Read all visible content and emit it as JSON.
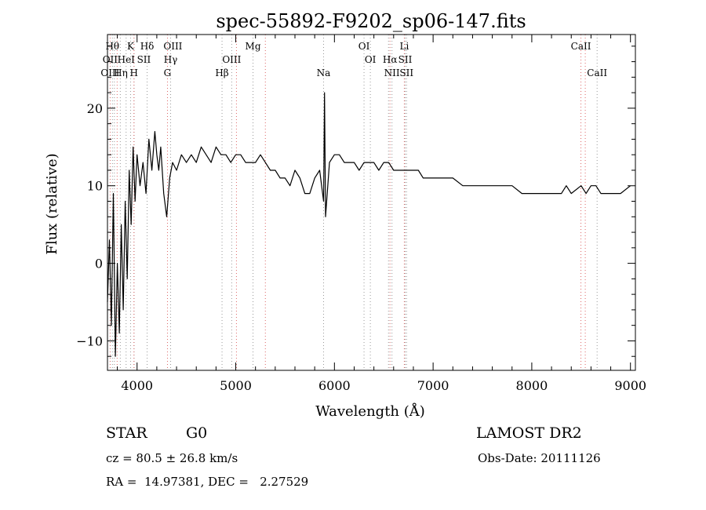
{
  "chart_data": {
    "type": "line",
    "title": "spec-55892-F9202_sp06-147.fits",
    "xlabel": "Wavelength (Å)",
    "ylabel": "Flux (relative)",
    "xlim": [
      3700,
      9050
    ],
    "ylim": [
      -13.8,
      29.5
    ],
    "xticks": [
      4000,
      5000,
      6000,
      7000,
      8000,
      9000
    ],
    "yticks": [
      -10,
      0,
      10,
      20
    ],
    "series": [
      {
        "name": "spectrum",
        "x": [
          3700,
          3720,
          3740,
          3760,
          3780,
          3800,
          3820,
          3840,
          3860,
          3880,
          3900,
          3920,
          3940,
          3960,
          3980,
          4000,
          4030,
          4060,
          4090,
          4120,
          4150,
          4180,
          4200,
          4220,
          4240,
          4270,
          4300,
          4330,
          4360,
          4400,
          4450,
          4500,
          4550,
          4600,
          4650,
          4700,
          4750,
          4800,
          4850,
          4900,
          4950,
          5000,
          5050,
          5100,
          5150,
          5200,
          5250,
          5300,
          5350,
          5400,
          5450,
          5500,
          5550,
          5600,
          5650,
          5700,
          5750,
          5800,
          5850,
          5890,
          5900,
          5910,
          5950,
          6000,
          6050,
          6100,
          6150,
          6200,
          6250,
          6300,
          6350,
          6400,
          6450,
          6500,
          6550,
          6600,
          6650,
          6700,
          6750,
          6800,
          6850,
          6900,
          6950,
          7000,
          7100,
          7200,
          7300,
          7400,
          7500,
          7600,
          7700,
          7800,
          7900,
          8000,
          8100,
          8200,
          8300,
          8350,
          8400,
          8500,
          8550,
          8600,
          8650,
          8700,
          8800,
          8900,
          9000
        ],
        "values": [
          -5,
          3,
          -8,
          9,
          -12,
          0,
          -9,
          5,
          -6,
          8,
          -2,
          12,
          5,
          15,
          8,
          14,
          10,
          13,
          9,
          16,
          12,
          17,
          14,
          12,
          15,
          9,
          6,
          11,
          13,
          12,
          14,
          13,
          14,
          13,
          15,
          14,
          13,
          15,
          14,
          14,
          13,
          14,
          14,
          13,
          13,
          13,
          14,
          13,
          12,
          12,
          11,
          11,
          10,
          12,
          11,
          9,
          9,
          11,
          12,
          8,
          22,
          6,
          13,
          14,
          14,
          13,
          13,
          13,
          12,
          13,
          13,
          13,
          12,
          13,
          13,
          12,
          12,
          12,
          12,
          12,
          12,
          11,
          11,
          11,
          11,
          11,
          10,
          10,
          10,
          10,
          10,
          10,
          9,
          9,
          9,
          9,
          9,
          10,
          9,
          10,
          9,
          10,
          10,
          9,
          9,
          9,
          10
        ]
      }
    ],
    "line_groups": [
      {
        "color": "#999999",
        "x": [
          3750,
          3770,
          3830,
          3889,
          3934,
          3970,
          4102,
          4340,
          4861,
          4959,
          5175,
          5890,
          6300,
          6364,
          6548,
          6583,
          6717,
          6731,
          8662
        ]
      },
      {
        "color": "#dd6666",
        "x": [
          3727,
          3798,
          3968,
          4308,
          5007,
          5300,
          6563,
          6708,
          8498,
          8542
        ]
      }
    ],
    "labels": [
      {
        "text": "Hθ",
        "x": 3750,
        "row": 1
      },
      {
        "text": "K",
        "x": 3934,
        "row": 1
      },
      {
        "text": "Hδ",
        "x": 4102,
        "row": 1
      },
      {
        "text": "OIII",
        "x": 4363,
        "row": 1
      },
      {
        "text": "Mg",
        "x": 5175,
        "row": 1
      },
      {
        "text": "OI",
        "x": 6300,
        "row": 1
      },
      {
        "text": "Li",
        "x": 6708,
        "row": 1
      },
      {
        "text": "CaII",
        "x": 8498,
        "row": 1
      },
      {
        "text": "OII",
        "x": 3727,
        "row": 2
      },
      {
        "text": "HeI",
        "x": 3889,
        "row": 2
      },
      {
        "text": "SII",
        "x": 4069,
        "row": 2
      },
      {
        "text": "Hγ",
        "x": 4340,
        "row": 2
      },
      {
        "text": "OIII",
        "x": 4959,
        "row": 2
      },
      {
        "text": "OI",
        "x": 6364,
        "row": 2
      },
      {
        "text": "Hα",
        "x": 6563,
        "row": 2
      },
      {
        "text": "SII",
        "x": 6717,
        "row": 2
      },
      {
        "text": "OIII",
        "x": 3727,
        "row": 3
      },
      {
        "text": "Hη",
        "x": 3835,
        "row": 3
      },
      {
        "text": "H",
        "x": 3968,
        "row": 3
      },
      {
        "text": "G",
        "x": 4308,
        "row": 3
      },
      {
        "text": "Hβ",
        "x": 4861,
        "row": 3
      },
      {
        "text": "Na",
        "x": 5890,
        "row": 3
      },
      {
        "text": "NII",
        "x": 6583,
        "row": 3
      },
      {
        "text": "SII",
        "x": 6731,
        "row": 3
      },
      {
        "text": "CaII",
        "x": 8662,
        "row": 3
      }
    ]
  },
  "info": {
    "object_class": "STAR",
    "subclass": "G0",
    "survey": "LAMOST DR2",
    "velocity": "cz = 80.5 ± 26.8 km/s",
    "obs_date": "Obs-Date: 20111126",
    "coordinates": "RA =  14.97381, DEC =   2.27529"
  }
}
